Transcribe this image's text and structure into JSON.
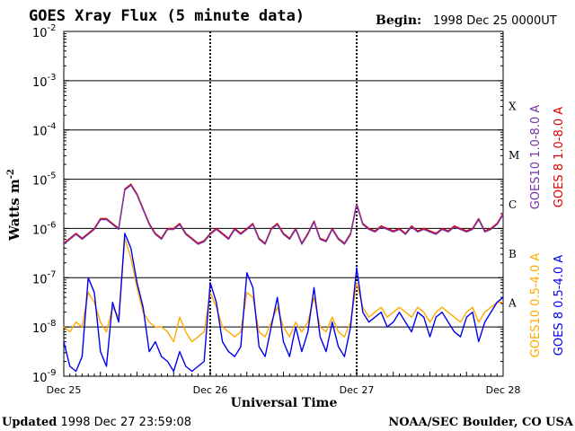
{
  "title": "GOES Xray Flux (5 minute data)",
  "begin_label": "Begin:",
  "begin_value": "1998 Dec 25 0000UT",
  "footer_left_label": "Updated",
  "footer_left_value": "1998 Dec 27 23:59:08",
  "footer_right": "NOAA/SEC Boulder, CO USA",
  "chart_data": {
    "type": "line",
    "title": "GOES Xray Flux (5 minute data)",
    "xlabel": "Universal Time",
    "ylabel": "Watts m",
    "ylabel_sup": "-2",
    "yscale": "log",
    "ylim": [
      1e-09,
      0.01
    ],
    "xlim": [
      0,
      72
    ],
    "x_unit": "hours since 1998 Dec 25 0000UT",
    "x_ticks": [
      {
        "x": 0,
        "label": "Dec 25"
      },
      {
        "x": 24,
        "label": "Dec 26"
      },
      {
        "x": 48,
        "label": "Dec 27"
      },
      {
        "x": 72,
        "label": "Dec 28"
      }
    ],
    "y_ticks": [
      {
        "exp": -9,
        "base": "10",
        "sup": "-9"
      },
      {
        "exp": -8,
        "base": "10",
        "sup": "-8"
      },
      {
        "exp": -7,
        "base": "10",
        "sup": "-7"
      },
      {
        "exp": -6,
        "base": "10",
        "sup": "-6"
      },
      {
        "exp": -5,
        "base": "10",
        "sup": "-5"
      },
      {
        "exp": -4,
        "base": "10",
        "sup": "-4"
      },
      {
        "exp": -3,
        "base": "10",
        "sup": "-3"
      },
      {
        "exp": -2,
        "base": "10",
        "sup": "-2"
      }
    ],
    "flare_classes": [
      {
        "label": "A",
        "exp": -8
      },
      {
        "label": "B",
        "exp": -7
      },
      {
        "label": "C",
        "exp": -6
      },
      {
        "label": "M",
        "exp": -5
      },
      {
        "label": "X",
        "exp": -4
      }
    ],
    "grid": true,
    "legend_position": "right",
    "series": [
      {
        "name": "GOES 8 1.0-8.0 A",
        "color": "#dd0000",
        "x": [
          0,
          1,
          2,
          3,
          4,
          5,
          6,
          7,
          8,
          9,
          10,
          11,
          12,
          13,
          14,
          15,
          16,
          17,
          18,
          19,
          20,
          21,
          22,
          23,
          24,
          25,
          26,
          27,
          28,
          29,
          30,
          31,
          32,
          33,
          34,
          35,
          36,
          37,
          38,
          39,
          40,
          41,
          42,
          43,
          44,
          45,
          46,
          47,
          48,
          49,
          50,
          51,
          52,
          53,
          54,
          55,
          56,
          57,
          58,
          59,
          60,
          61,
          62,
          63,
          64,
          65,
          66,
          67,
          68,
          69,
          70,
          71,
          72
        ],
        "y": [
          -6.3,
          -6.2,
          -6.1,
          -6.2,
          -6.1,
          -6.0,
          -5.8,
          -5.8,
          -5.9,
          -6.0,
          -5.2,
          -5.1,
          -5.3,
          -5.6,
          -5.9,
          -6.1,
          -6.2,
          -6.0,
          -6.0,
          -5.9,
          -6.1,
          -6.2,
          -6.3,
          -6.25,
          -6.1,
          -6.0,
          -6.1,
          -6.2,
          -6.0,
          -6.1,
          -6.0,
          -5.9,
          -6.2,
          -6.3,
          -6.0,
          -5.9,
          -6.1,
          -6.2,
          -6.0,
          -6.3,
          -6.1,
          -5.85,
          -6.2,
          -6.25,
          -6.0,
          -6.2,
          -6.3,
          -6.1,
          -5.5,
          -5.9,
          -6.0,
          -6.05,
          -5.95,
          -6.0,
          -6.05,
          -6.0,
          -6.1,
          -5.95,
          -6.05,
          -6.0,
          -6.05,
          -6.1,
          -6.0,
          -6.05,
          -5.95,
          -6.0,
          -6.05,
          -6.0,
          -5.8,
          -6.05,
          -6.0,
          -5.9,
          -5.7
        ]
      },
      {
        "name": "GOES10 1.0-8.0 A",
        "color": "#7733aa",
        "x": [
          0,
          1,
          2,
          3,
          4,
          5,
          6,
          7,
          8,
          9,
          10,
          11,
          12,
          13,
          14,
          15,
          16,
          17,
          18,
          19,
          20,
          21,
          22,
          23,
          24,
          25,
          26,
          27,
          28,
          29,
          30,
          31,
          32,
          33,
          34,
          35,
          36,
          37,
          38,
          39,
          40,
          41,
          42,
          43,
          44,
          45,
          46,
          47,
          48,
          49,
          50,
          51,
          52,
          53,
          54,
          55,
          56,
          57,
          58,
          59,
          60,
          61,
          62,
          63,
          64,
          65,
          66,
          67,
          68,
          69,
          70,
          71,
          72
        ],
        "y": [
          -6.32,
          -6.22,
          -6.12,
          -6.22,
          -6.12,
          -6.02,
          -5.82,
          -5.82,
          -5.92,
          -6.02,
          -5.22,
          -5.12,
          -5.32,
          -5.62,
          -5.92,
          -6.12,
          -6.22,
          -6.02,
          -6.02,
          -5.92,
          -6.12,
          -6.22,
          -6.32,
          -6.27,
          -6.12,
          -6.02,
          -6.12,
          -6.22,
          -6.02,
          -6.12,
          -6.02,
          -5.92,
          -6.22,
          -6.32,
          -6.02,
          -5.92,
          -6.12,
          -6.22,
          -6.02,
          -6.32,
          -6.12,
          -5.87,
          -6.22,
          -6.27,
          -6.02,
          -6.22,
          -6.32,
          -6.12,
          -5.52,
          -5.92,
          -6.02,
          -6.07,
          -5.97,
          -6.02,
          -6.07,
          -6.02,
          -6.12,
          -5.97,
          -6.07,
          -6.02,
          -6.07,
          -6.12,
          -6.02,
          -6.07,
          -5.97,
          -6.02,
          -6.07,
          -6.02,
          -5.82,
          -6.07,
          -6.02,
          -5.92,
          -5.72
        ]
      },
      {
        "name": "GOES10 0.5-4.0 A",
        "color": "#ffaa00",
        "x": [
          0,
          1,
          2,
          3,
          4,
          5,
          6,
          7,
          8,
          9,
          10,
          11,
          12,
          13,
          14,
          15,
          16,
          17,
          18,
          19,
          20,
          21,
          22,
          23,
          24,
          25,
          26,
          27,
          28,
          29,
          30,
          31,
          32,
          33,
          34,
          35,
          36,
          37,
          38,
          39,
          40,
          41,
          42,
          43,
          44,
          45,
          46,
          47,
          48,
          49,
          50,
          51,
          52,
          53,
          54,
          55,
          56,
          57,
          58,
          59,
          60,
          61,
          62,
          63,
          64,
          65,
          66,
          67,
          68,
          69,
          70,
          71,
          72
        ],
        "y": [
          -8.0,
          -8.1,
          -7.9,
          -8.0,
          -7.3,
          -7.5,
          -7.9,
          -8.1,
          -7.6,
          -7.8,
          -6.2,
          -6.6,
          -7.2,
          -7.7,
          -7.9,
          -8.0,
          -8.0,
          -8.1,
          -8.3,
          -7.8,
          -8.1,
          -8.3,
          -8.2,
          -8.1,
          -7.3,
          -7.6,
          -8.0,
          -8.1,
          -8.2,
          -8.1,
          -7.3,
          -7.4,
          -8.1,
          -8.2,
          -7.9,
          -7.6,
          -8.0,
          -8.2,
          -7.9,
          -8.1,
          -7.9,
          -7.4,
          -8.0,
          -8.1,
          -7.8,
          -8.1,
          -8.2,
          -7.9,
          -7.1,
          -7.6,
          -7.8,
          -7.7,
          -7.6,
          -7.8,
          -7.7,
          -7.6,
          -7.7,
          -7.8,
          -7.6,
          -7.7,
          -7.9,
          -7.7,
          -7.6,
          -7.7,
          -7.8,
          -7.9,
          -7.7,
          -7.6,
          -7.9,
          -7.7,
          -7.6,
          -7.5,
          -7.5
        ]
      },
      {
        "name": "GOES 8 0.5-4.0 A",
        "color": "#0000ee",
        "x": [
          0,
          1,
          2,
          3,
          4,
          5,
          6,
          7,
          8,
          9,
          10,
          11,
          12,
          13,
          14,
          15,
          16,
          17,
          18,
          19,
          20,
          21,
          22,
          23,
          24,
          25,
          26,
          27,
          28,
          29,
          30,
          31,
          32,
          33,
          34,
          35,
          36,
          37,
          38,
          39,
          40,
          41,
          42,
          43,
          44,
          45,
          46,
          47,
          48,
          49,
          50,
          51,
          52,
          53,
          54,
          55,
          56,
          57,
          58,
          59,
          60,
          61,
          62,
          63,
          64,
          65,
          66,
          67,
          68,
          69,
          70,
          71,
          72
        ],
        "y": [
          -8.3,
          -8.8,
          -8.9,
          -8.6,
          -7.0,
          -7.3,
          -8.5,
          -8.8,
          -7.5,
          -7.9,
          -6.1,
          -6.4,
          -7.1,
          -7.6,
          -8.5,
          -8.3,
          -8.6,
          -8.7,
          -8.9,
          -8.5,
          -8.8,
          -8.9,
          -8.8,
          -8.7,
          -7.1,
          -7.5,
          -8.3,
          -8.5,
          -8.6,
          -8.4,
          -6.9,
          -7.2,
          -8.4,
          -8.6,
          -8.0,
          -7.4,
          -8.3,
          -8.6,
          -8.0,
          -8.5,
          -8.1,
          -7.2,
          -8.2,
          -8.5,
          -7.9,
          -8.4,
          -8.6,
          -8.0,
          -6.8,
          -7.7,
          -7.9,
          -7.8,
          -7.7,
          -8.0,
          -7.9,
          -7.7,
          -7.9,
          -8.1,
          -7.7,
          -7.8,
          -8.2,
          -7.8,
          -7.7,
          -7.9,
          -8.1,
          -8.2,
          -7.8,
          -7.7,
          -8.3,
          -7.9,
          -7.7,
          -7.5,
          -7.4
        ]
      }
    ]
  }
}
